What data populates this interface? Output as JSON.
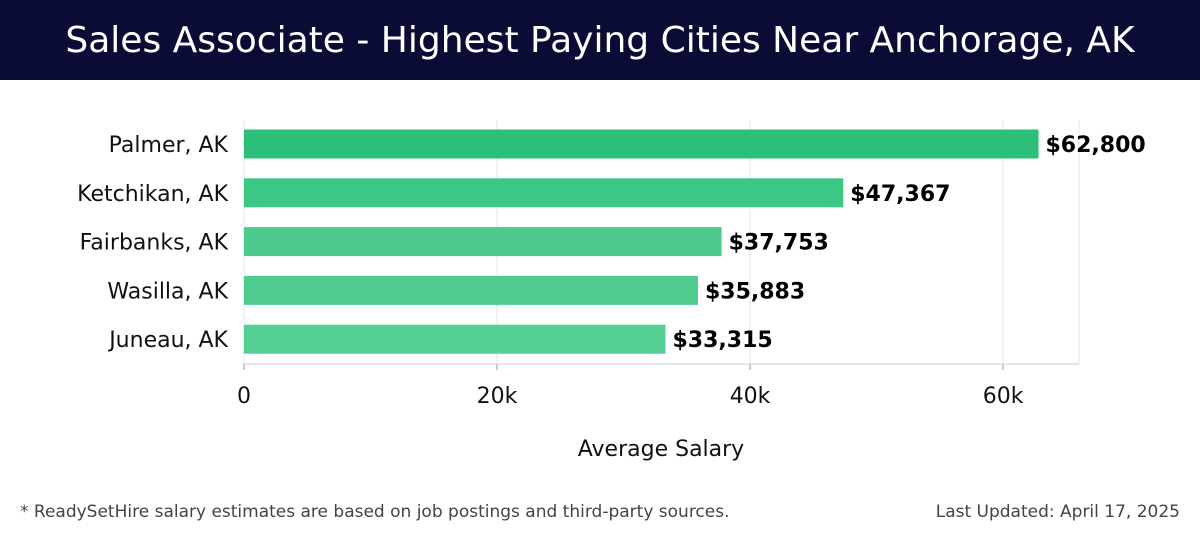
{
  "header": {
    "title": "Sales Associate - Highest Paying Cities Near Anchorage, AK"
  },
  "chart_data": {
    "type": "bar",
    "orientation": "horizontal",
    "categories": [
      "Palmer, AK",
      "Ketchikan, AK",
      "Fairbanks, AK",
      "Wasilla, AK",
      "Juneau, AK"
    ],
    "values": [
      62800,
      47367,
      37753,
      35883,
      33315
    ],
    "value_labels": [
      "$62,800",
      "$47,367",
      "$37,753",
      "$35,883",
      "$33,315"
    ],
    "xlabel": "Average Salary",
    "ylabel": "",
    "xlim": [
      0,
      66000
    ],
    "xticks": [
      0,
      20000,
      40000,
      60000
    ],
    "xtick_labels": [
      "0",
      "20k",
      "40k",
      "60k"
    ],
    "grid": "vertical",
    "bar_colors": [
      "#2bbf78",
      "#3cc785",
      "#4ccb8c",
      "#4ecc8e",
      "#55ce93"
    ],
    "gridline_color": "#e4e4e4"
  },
  "footer": {
    "note": "* ReadySetHire salary estimates are based on job postings and third-party sources.",
    "updated": "Last Updated: April 17, 2025"
  }
}
